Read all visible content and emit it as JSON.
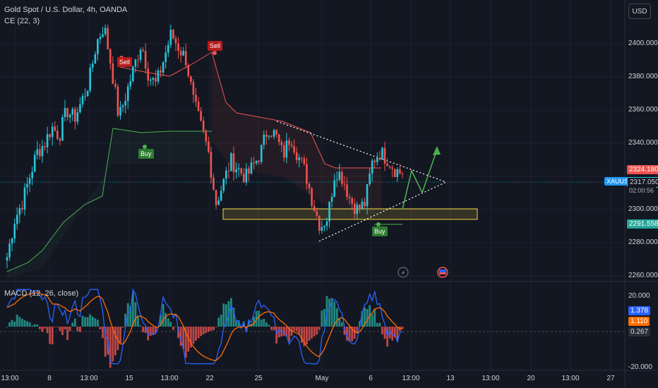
{
  "header": {
    "title": "Gold Spot / U.S. Dollar, 4h, OANDA",
    "indicator": "CE (22, 3)",
    "currency": "USD"
  },
  "price_axis": {
    "ticks": [
      "2400.000",
      "2380.000",
      "2360.000",
      "2340.000",
      "2300.000",
      "2280.000",
      "2260.000"
    ],
    "tick_values": [
      2400,
      2380,
      2360,
      2340,
      2300,
      2280,
      2260
    ],
    "ylim": [
      2254,
      2418
    ]
  },
  "badges": {
    "upper_price": "2324.180",
    "symbol": "XAUUSD",
    "last_price": "2317.050",
    "countdown": "02:00:56",
    "stop_price": "2291.558"
  },
  "signals": {
    "sell_1": "Sell",
    "sell_2": "Sell",
    "buy_1": "Buy",
    "buy_2": "Buy"
  },
  "macd": {
    "title": "MACD (12, 26, close)",
    "ticks": [
      "20.000",
      "-20.000"
    ],
    "badges": [
      "1.378",
      "1.110",
      "0.267"
    ],
    "ylim": [
      -22,
      22
    ]
  },
  "time_axis": {
    "labels": [
      "13:00",
      "8",
      "13:00",
      "15",
      "13:00",
      "22",
      "25",
      "May",
      "6",
      "13:00",
      "13",
      "13:00",
      "20",
      "13:00",
      "27"
    ]
  },
  "colors": {
    "background": "#131722",
    "up": "#26c6da",
    "down": "#ef5350",
    "ce_long": "#4caf50",
    "ce_short": "#ef5350",
    "macd_line": "#2962ff",
    "signal_line": "#ff6d00",
    "zone": "#f5d742",
    "projection": "#4caf50"
  },
  "chart_data": {
    "type": "candlestick",
    "symbol": "XAUUSD",
    "timeframe": "4h",
    "approx_close_path": [
      2268,
      2290,
      2300,
      2315,
      2330,
      2335,
      2345,
      2340,
      2355,
      2350,
      2360,
      2372,
      2395,
      2405,
      2380,
      2350,
      2365,
      2380,
      2395,
      2375,
      2370,
      2385,
      2400,
      2392,
      2385,
      2360,
      2345,
      2330,
      2300,
      2312,
      2325,
      2320,
      2315,
      2322,
      2330,
      2345,
      2340,
      2328,
      2340,
      2328,
      2318,
      2300,
      2286,
      2292,
      2320,
      2315,
      2302,
      2296,
      2300,
      2325,
      2330,
      2326,
      2320,
      2317
    ],
    "price_ylim": [
      2254,
      2418
    ],
    "current_price": 2317.05,
    "macd": {
      "values": [
        1.378,
        1.11,
        0.267
      ],
      "ylim": [
        -22,
        22
      ]
    }
  }
}
